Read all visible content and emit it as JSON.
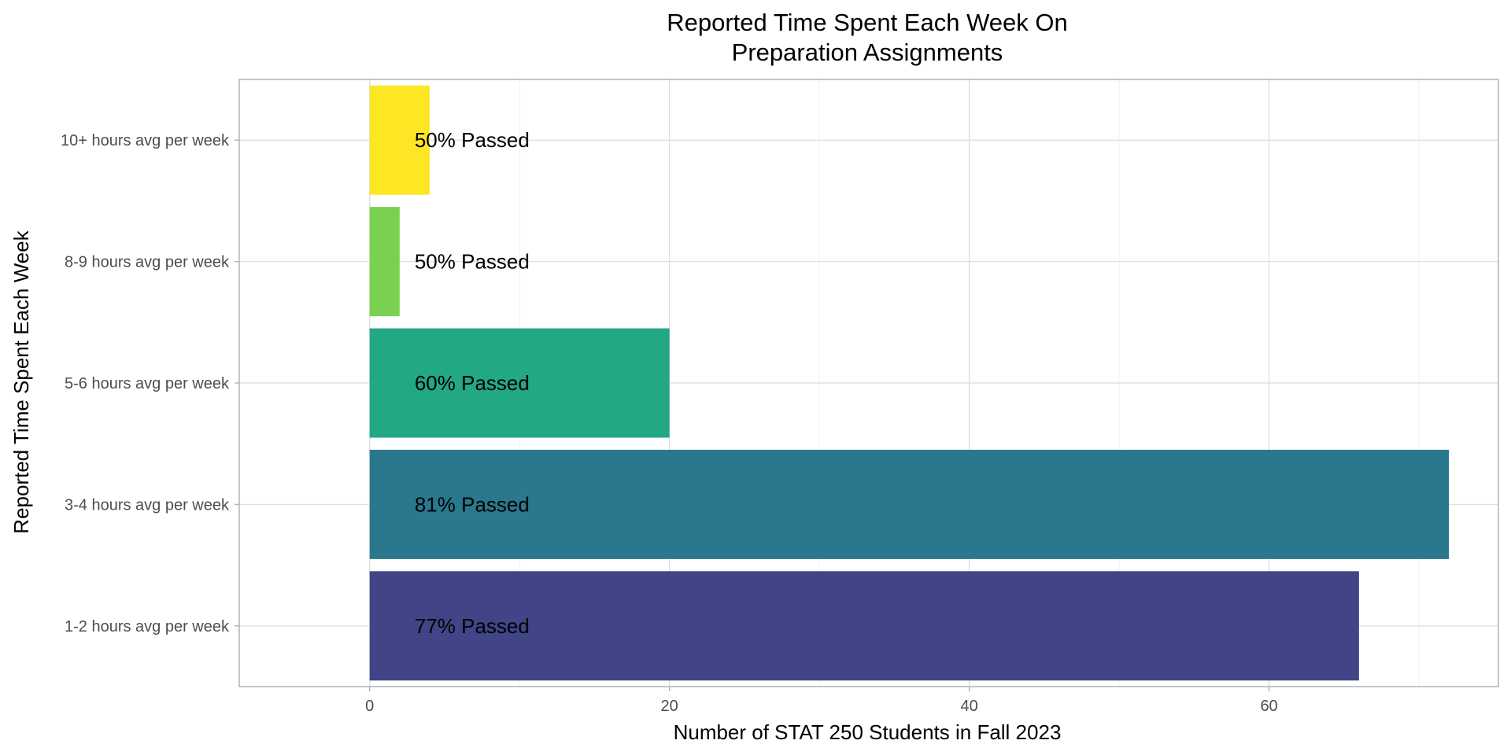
{
  "chart_data": {
    "type": "bar",
    "orientation": "horizontal",
    "title": [
      "Reported Time Spent Each Week On",
      "Preparation Assignments"
    ],
    "xlabel": "Number of STAT 250 Students in Fall 2023",
    "ylabel": "Reported Time Spent Each Week",
    "xlim": [
      -8.7,
      75.3
    ],
    "x_ticks": [
      0,
      20,
      40,
      60
    ],
    "grid": true,
    "legend": "none",
    "categories": [
      "1-2 hours avg per week",
      "3-4 hours avg per week",
      "5-6 hours avg per week",
      "8-9 hours avg per week",
      "10+ hours avg per week"
    ],
    "values": [
      66,
      72,
      20,
      2,
      4
    ],
    "bar_labels": [
      "77% Passed",
      "81% Passed",
      "60% Passed",
      "50% Passed",
      "50% Passed"
    ],
    "label_x": 3,
    "colors": [
      "#414487",
      "#2A788E",
      "#22A884",
      "#7AD151",
      "#FDE725"
    ]
  }
}
